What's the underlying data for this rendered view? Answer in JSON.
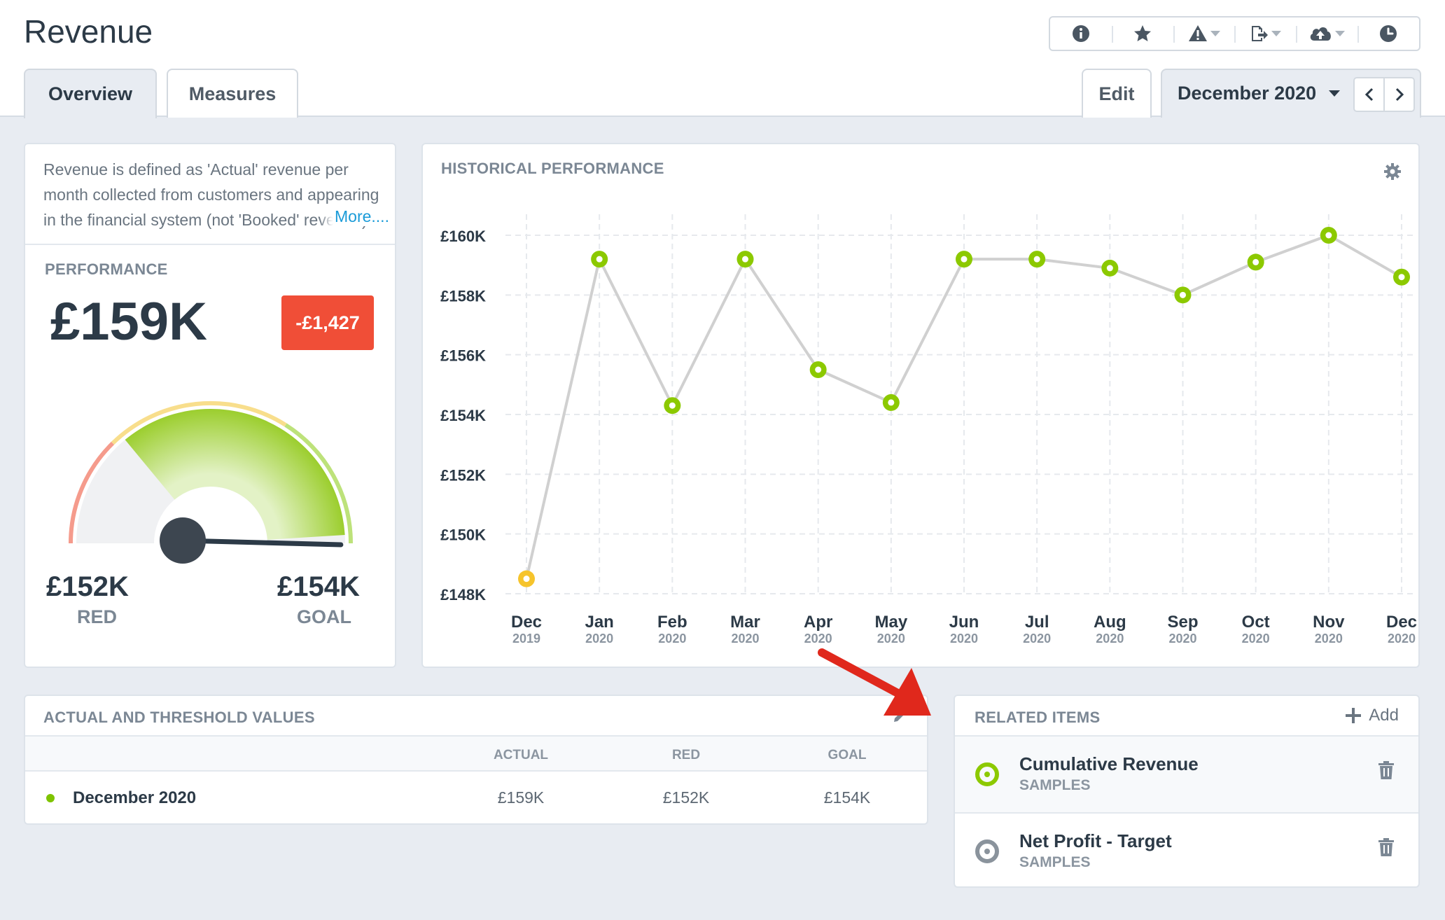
{
  "page": {
    "title": "Revenue"
  },
  "toolbar": {
    "buttons": [
      {
        "icon": "info-icon"
      },
      {
        "icon": "star-icon"
      },
      {
        "icon": "warning-icon",
        "dropdown": true
      },
      {
        "icon": "export-icon",
        "dropdown": true
      },
      {
        "icon": "cloud-upload-icon",
        "dropdown": true
      },
      {
        "icon": "clock-icon"
      }
    ]
  },
  "tabs": [
    {
      "label": "Overview",
      "active": true
    },
    {
      "label": "Measures",
      "active": false
    }
  ],
  "edit_label": "Edit",
  "period": {
    "selected": "December 2020"
  },
  "description": {
    "text": "Revenue is defined as 'Actual' revenue per month collected from customers and appearing in the financial system (not 'Booked' revenue)",
    "more_label": "More...."
  },
  "performance": {
    "label": "PERFORMANCE",
    "value": "£159K",
    "delta": "-£1,427",
    "gauge": {
      "red_value": "£152K",
      "red_label": "RED",
      "goal_value": "£154K",
      "goal_label": "GOAL",
      "fill_fraction": 0.98
    }
  },
  "chart_data": {
    "type": "line",
    "title": "HISTORICAL PERFORMANCE",
    "categories": [
      "Dec",
      "Jan",
      "Feb",
      "Mar",
      "Apr",
      "May",
      "Jun",
      "Jul",
      "Aug",
      "Sep",
      "Oct",
      "Nov",
      "Dec"
    ],
    "years": [
      "2019",
      "2020",
      "2020",
      "2020",
      "2020",
      "2020",
      "2020",
      "2020",
      "2020",
      "2020",
      "2020",
      "2020",
      "2020"
    ],
    "values": [
      148.5,
      159.2,
      154.3,
      159.2,
      155.5,
      154.4,
      159.2,
      159.2,
      158.9,
      158.0,
      159.1,
      160.0,
      158.6
    ],
    "point_colors": [
      "#f6c42c",
      "#8cc900",
      "#8cc900",
      "#8cc900",
      "#8cc900",
      "#8cc900",
      "#8cc900",
      "#8cc900",
      "#8cc900",
      "#8cc900",
      "#8cc900",
      "#8cc900",
      "#8cc900"
    ],
    "y_ticks": [
      "£160K",
      "£158K",
      "£156K",
      "£154K",
      "£152K",
      "£150K",
      "£148K"
    ],
    "ylim": [
      148,
      160
    ],
    "grid": true,
    "line_color": "#d0d0d0"
  },
  "values_table": {
    "title": "ACTUAL AND THRESHOLD VALUES",
    "columns": [
      "ACTUAL",
      "RED",
      "GOAL"
    ],
    "rows": [
      {
        "name": "December 2020",
        "actual": "£159K",
        "red": "£152K",
        "goal": "£154K"
      }
    ]
  },
  "related": {
    "title": "RELATED ITEMS",
    "add_label": "Add",
    "items": [
      {
        "name": "Cumulative Revenue",
        "sub": "SAMPLES",
        "status_color": "#8cc900"
      },
      {
        "name": "Net Profit - Target",
        "sub": "SAMPLES",
        "status_color": "#8a939c"
      }
    ]
  },
  "colors": {
    "red": "#f04e37",
    "green": "#8cc900",
    "yellow": "#f6c42c",
    "link": "#1a9bd8",
    "annotation_arrow": "#e0281c"
  }
}
